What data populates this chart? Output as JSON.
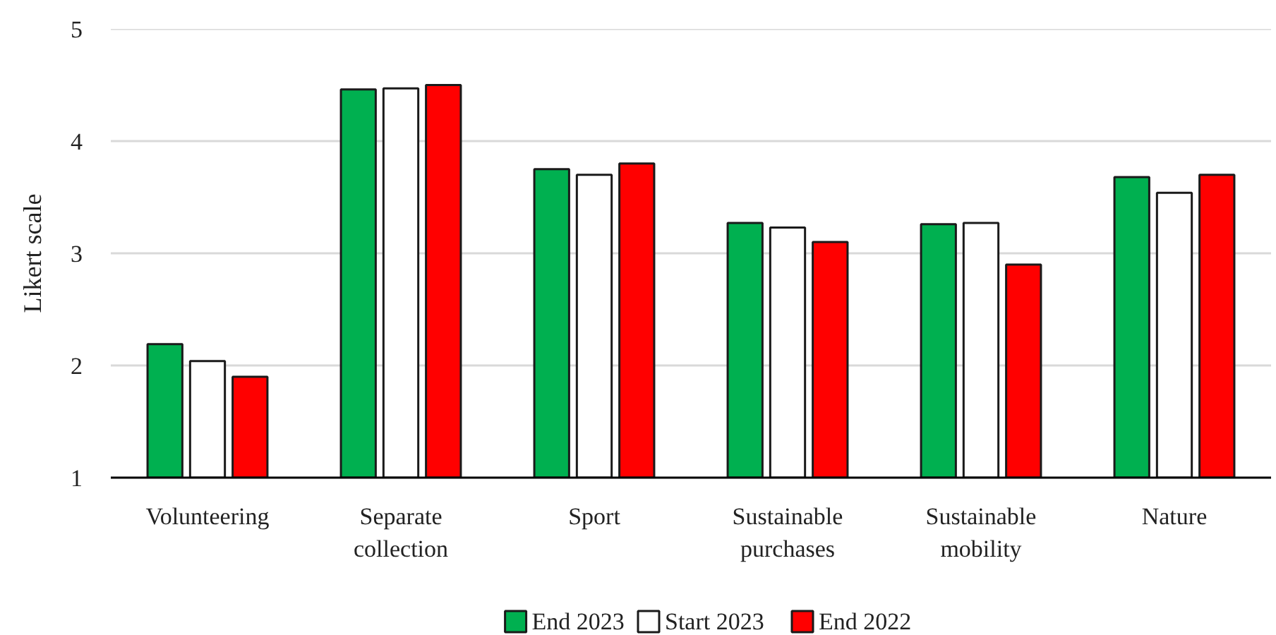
{
  "chart_data": {
    "type": "bar",
    "ylabel": "Likert scale",
    "categories": [
      "Volunteering",
      "Separate collection",
      "Sport",
      "Sustainable purchases",
      "Sustainable mobility",
      "Nature"
    ],
    "series": [
      {
        "name": "End 2023",
        "color": "#00b050",
        "values": [
          2.19,
          4.46,
          3.75,
          3.27,
          3.26,
          3.68
        ]
      },
      {
        "name": "Start 2023",
        "color": "#ffffff",
        "values": [
          2.04,
          4.47,
          3.7,
          3.23,
          3.27,
          3.54
        ]
      },
      {
        "name": "End 2022",
        "color": "#ff0000",
        "values": [
          1.9,
          4.5,
          3.8,
          3.1,
          2.9,
          3.7
        ]
      }
    ],
    "ylim": [
      1,
      5
    ],
    "yticks": [
      1,
      2,
      3,
      4,
      5
    ],
    "grid": "y",
    "legend": "bottom"
  }
}
